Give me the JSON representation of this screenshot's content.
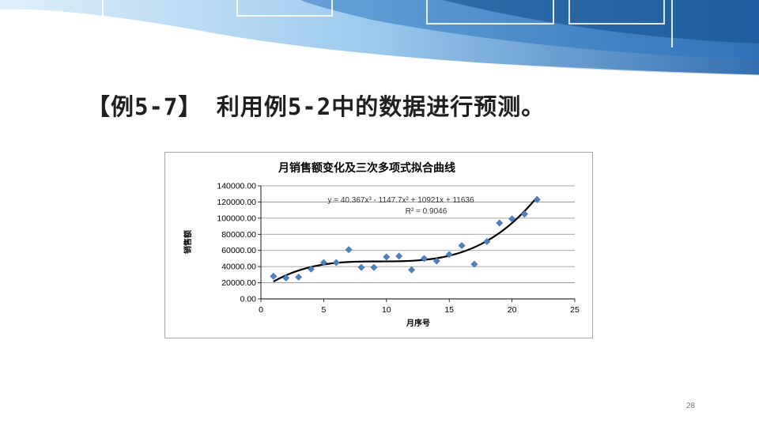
{
  "slide": {
    "title": "【例5-7】 利用例5-2中的数据进行预测。",
    "page_number": "28"
  },
  "colors": {
    "banner_dark": "#1f5fa8",
    "banner_light": "#8fc3ea",
    "marker": "#4f81bd",
    "trend": "#000000",
    "grid": "#8c8c8c"
  },
  "chart_data": {
    "type": "scatter",
    "title": "月销售额变化及三次多项式拟合曲线",
    "xlabel": "月序号",
    "ylabel": "销售额",
    "xlim": [
      0,
      25
    ],
    "ylim": [
      0,
      140000
    ],
    "x_ticks": [
      "0",
      "5",
      "10",
      "15",
      "20",
      "25"
    ],
    "y_ticks": [
      "0.00",
      "20000.00",
      "40000.00",
      "60000.00",
      "80000.00",
      "100000.00",
      "120000.00",
      "140000.00"
    ],
    "grid": "horizontal",
    "legend": "none",
    "series": [
      {
        "x": [
          1,
          2,
          3,
          4,
          5,
          6,
          7,
          8,
          9,
          10,
          11,
          12,
          13,
          14,
          15,
          16,
          17,
          18,
          19,
          20,
          21,
          22
        ],
        "y": [
          28000,
          26000,
          27000,
          37000,
          45000,
          45000,
          61000,
          39000,
          39000,
          52000,
          53000,
          36000,
          50000,
          47000,
          55000,
          66000,
          43000,
          71000,
          94000,
          99000,
          105000,
          123000
        ]
      }
    ],
    "trendline": {
      "type": "polynomial",
      "order": 3,
      "coefficients": [
        40.367,
        -1147.7,
        10921,
        11636
      ],
      "equation": "y = 40.367x³ - 1147.7x² + 10921x + 11636",
      "r_squared": "R² = 0.9046",
      "x_range": [
        1,
        22
      ]
    }
  }
}
